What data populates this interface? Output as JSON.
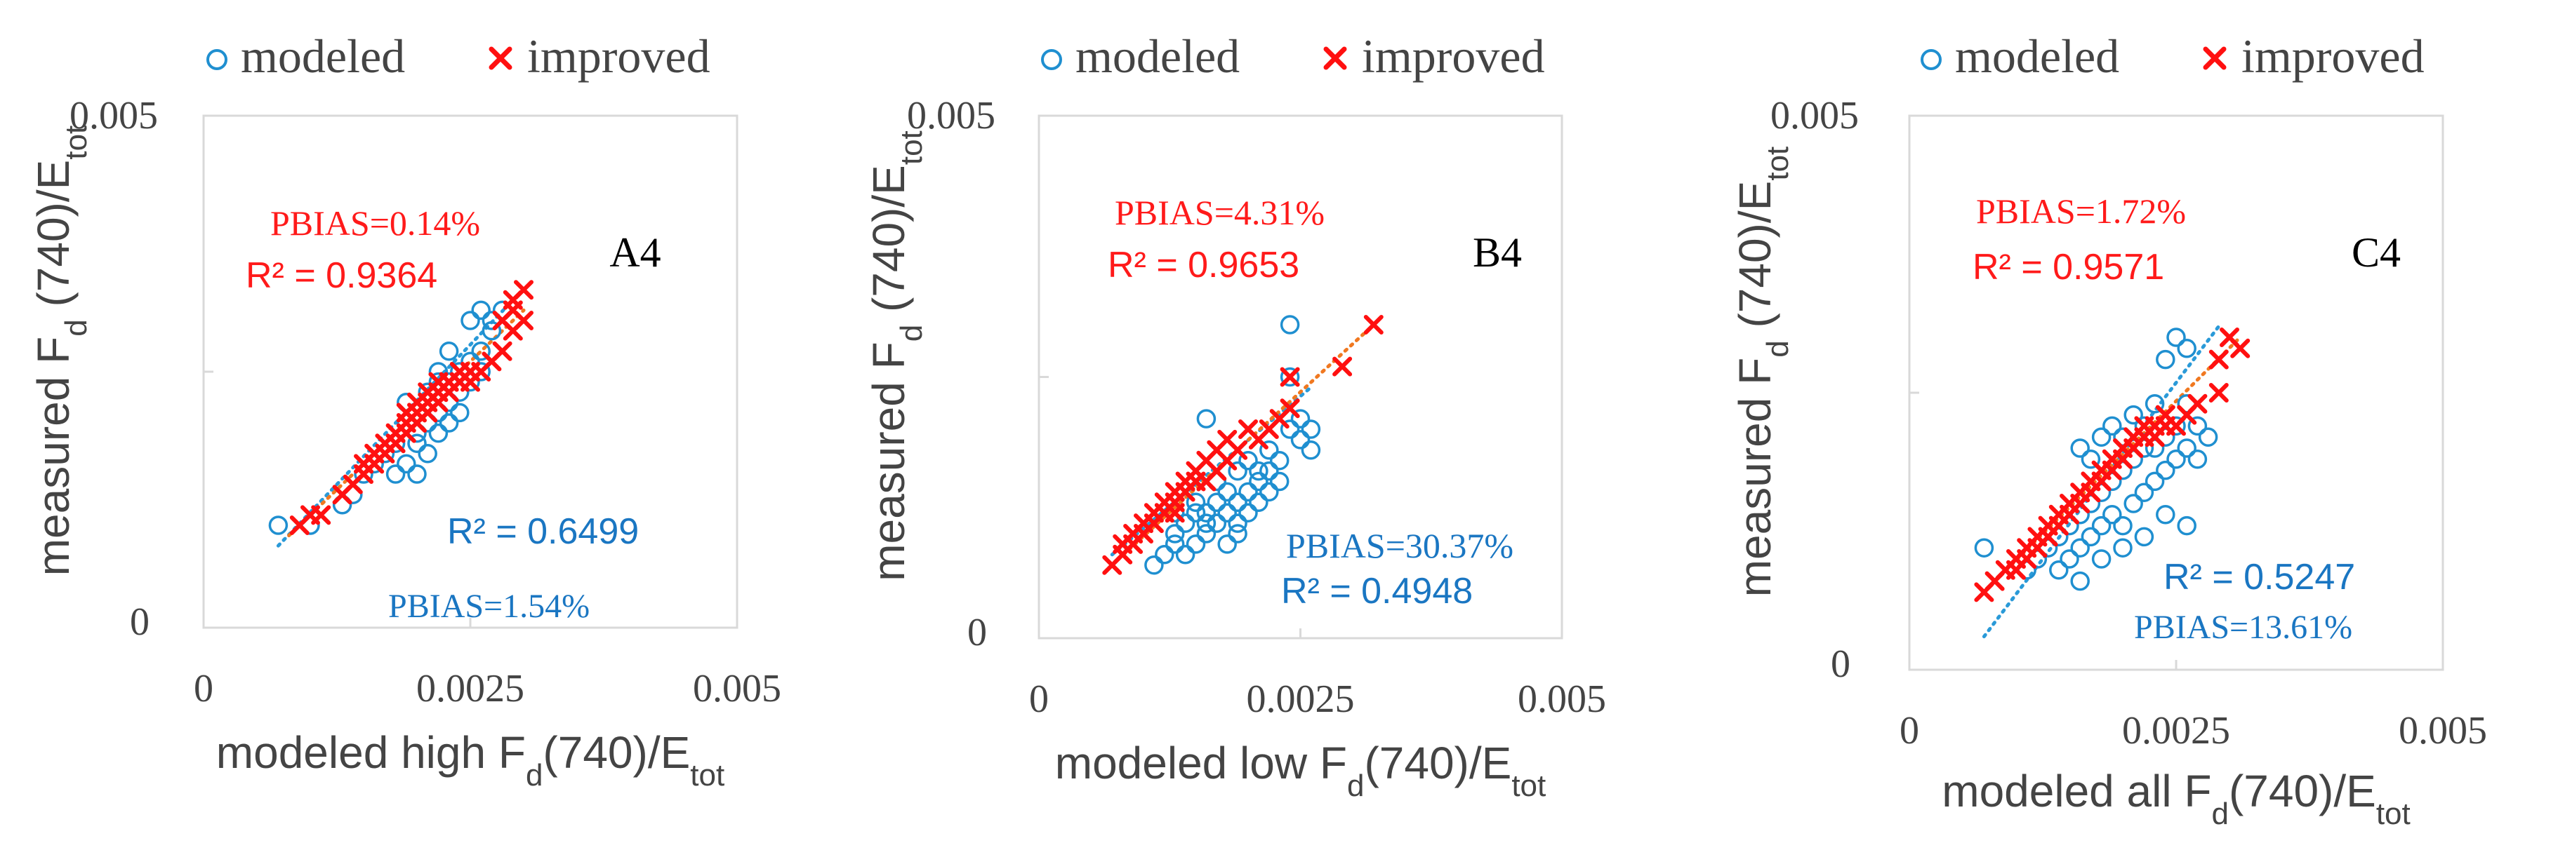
{
  "colors": {
    "modeled": "#1f8fd0",
    "improved": "#ff1010",
    "fit_modeled": "#2a9ad8",
    "fit_improved": "#f07820",
    "text_dark": "#444444",
    "stat_blue": "#1a76c2",
    "stat_red": "#ff1a1a",
    "frame": "#d9d9d9"
  },
  "legend": {
    "modeled": "modeled",
    "improved": "improved"
  },
  "chart_data": [
    {
      "type": "scatter",
      "panel_label": "A4",
      "xlabel": {
        "pre": "modeled high F",
        "sub": "d",
        "mid": "(740)/E",
        "sub2": "tot"
      },
      "ylabel": {
        "pre": "measured F",
        "sub": "d",
        "mid": " (740)/E",
        "sub2": "tot"
      },
      "xlim": [
        0,
        0.005
      ],
      "ylim": [
        0,
        0.005
      ],
      "xticks": [
        "0",
        "0.0025",
        "0.005"
      ],
      "yticks": [
        "0",
        "0.005"
      ],
      "stats": {
        "improved_pbias": "PBIAS=0.14%",
        "improved_r2": "R² = 0.9364",
        "modeled_r2": "R² = 0.6499",
        "modeled_pbias": "PBIAS=1.54%"
      },
      "series": [
        {
          "name": "modeled",
          "marker": "circle",
          "x": [
            0.0007,
            0.001,
            0.0013,
            0.0014,
            0.0015,
            0.0016,
            0.0017,
            0.0018,
            0.0018,
            0.0019,
            0.0019,
            0.002,
            0.002,
            0.002,
            0.0021,
            0.0021,
            0.0021,
            0.0022,
            0.0022,
            0.0022,
            0.0022,
            0.0023,
            0.0023,
            0.0023,
            0.0023,
            0.0024,
            0.0024,
            0.0024,
            0.0025,
            0.0025,
            0.0025,
            0.0026,
            0.0026,
            0.0026,
            0.0027,
            0.0027,
            0.0028,
            0.0019,
            0.002,
            0.0021
          ],
          "y": [
            0.001,
            0.001,
            0.0012,
            0.0013,
            0.0015,
            0.0016,
            0.0017,
            0.0015,
            0.0018,
            0.0016,
            0.0022,
            0.0015,
            0.0018,
            0.0021,
            0.0017,
            0.002,
            0.0022,
            0.0019,
            0.0021,
            0.0024,
            0.0025,
            0.002,
            0.0022,
            0.0024,
            0.0027,
            0.0021,
            0.0023,
            0.0025,
            0.0024,
            0.0026,
            0.003,
            0.0025,
            0.0027,
            0.0031,
            0.0029,
            0.003,
            0.0031,
            0.002,
            0.0019,
            0.0023
          ]
        },
        {
          "name": "improved",
          "marker": "x",
          "x": [
            0.0009,
            0.001,
            0.0011,
            0.0013,
            0.0014,
            0.0015,
            0.0015,
            0.0016,
            0.0016,
            0.0017,
            0.0017,
            0.0018,
            0.0018,
            0.0019,
            0.0019,
            0.0019,
            0.002,
            0.002,
            0.002,
            0.0021,
            0.0021,
            0.0021,
            0.0022,
            0.0022,
            0.0022,
            0.0023,
            0.0023,
            0.0023,
            0.0024,
            0.0024,
            0.0025,
            0.0025,
            0.0026,
            0.0027,
            0.0028,
            0.0028,
            0.0029,
            0.0029,
            0.0029,
            0.003,
            0.003
          ],
          "y": [
            0.001,
            0.0011,
            0.0011,
            0.0013,
            0.0014,
            0.0015,
            0.0016,
            0.0016,
            0.0017,
            0.0017,
            0.0018,
            0.0018,
            0.0019,
            0.0019,
            0.002,
            0.0021,
            0.002,
            0.0021,
            0.0022,
            0.0021,
            0.0022,
            0.0023,
            0.0022,
            0.0023,
            0.0024,
            0.0023,
            0.0024,
            0.0024,
            0.0024,
            0.0025,
            0.0024,
            0.0025,
            0.0025,
            0.0026,
            0.0027,
            0.003,
            0.0029,
            0.0031,
            0.0032,
            0.003,
            0.0033
          ]
        }
      ],
      "fit_lines": {
        "modeled": [
          0.0007,
          0.0008,
          0.0029,
          0.0032
        ],
        "improved": [
          0.0008,
          0.0009,
          0.003,
          0.0031
        ]
      }
    },
    {
      "type": "scatter",
      "panel_label": "B4",
      "xlabel": {
        "pre": "modeled low F",
        "sub": "d",
        "mid": "(740)/E",
        "sub2": "tot"
      },
      "ylabel": {
        "pre": "measured F",
        "sub": "d",
        "mid": " (740)/E",
        "sub2": "tot"
      },
      "xlim": [
        0,
        0.005
      ],
      "ylim": [
        0,
        0.005
      ],
      "xticks": [
        "0",
        "0.0025",
        "0.005"
      ],
      "yticks": [
        "0",
        "0.005"
      ],
      "stats": {
        "improved_pbias": "PBIAS=4.31%",
        "improved_r2": "R² = 0.9653",
        "modeled_pbias": "PBIAS=30.37%",
        "modeled_r2": "R² = 0.4948"
      },
      "series": [
        {
          "name": "modeled",
          "marker": "circle",
          "x": [
            0.0011,
            0.0012,
            0.0013,
            0.0013,
            0.0014,
            0.0014,
            0.0015,
            0.0015,
            0.0015,
            0.0016,
            0.0016,
            0.0016,
            0.0017,
            0.0017,
            0.0017,
            0.0018,
            0.0018,
            0.0018,
            0.0019,
            0.0019,
            0.0019,
            0.002,
            0.002,
            0.002,
            0.0021,
            0.0021,
            0.0022,
            0.0022,
            0.0022,
            0.0023,
            0.0023,
            0.0024,
            0.0024,
            0.0024,
            0.0025,
            0.0025,
            0.0026,
            0.0026,
            0.0016,
            0.0013,
            0.0019,
            0.0021
          ],
          "y": [
            0.0007,
            0.0008,
            0.0009,
            0.001,
            0.0008,
            0.0011,
            0.0009,
            0.0012,
            0.0013,
            0.001,
            0.0012,
            0.0021,
            0.0011,
            0.0013,
            0.0015,
            0.0009,
            0.0012,
            0.0014,
            0.0011,
            0.0013,
            0.0016,
            0.0012,
            0.0014,
            0.0017,
            0.0013,
            0.0015,
            0.0014,
            0.0016,
            0.0018,
            0.0015,
            0.0017,
            0.002,
            0.0025,
            0.003,
            0.0019,
            0.0021,
            0.0018,
            0.002,
            0.0011,
            0.0012,
            0.001,
            0.0016
          ]
        },
        {
          "name": "improved",
          "marker": "x",
          "x": [
            0.0007,
            0.0008,
            0.0008,
            0.0009,
            0.0009,
            0.001,
            0.001,
            0.0011,
            0.0011,
            0.0012,
            0.0012,
            0.0013,
            0.0013,
            0.0013,
            0.0014,
            0.0014,
            0.0015,
            0.0015,
            0.0016,
            0.0016,
            0.0017,
            0.0017,
            0.0018,
            0.0018,
            0.0019,
            0.002,
            0.0021,
            0.0022,
            0.0023,
            0.0024,
            0.0024,
            0.0029,
            0.0032
          ],
          "y": [
            0.0007,
            0.0008,
            0.0009,
            0.0009,
            0.001,
            0.001,
            0.0011,
            0.0011,
            0.0012,
            0.0012,
            0.0013,
            0.0012,
            0.0013,
            0.0014,
            0.0014,
            0.0015,
            0.0015,
            0.0016,
            0.0015,
            0.0017,
            0.0016,
            0.0018,
            0.0017,
            0.0019,
            0.0018,
            0.002,
            0.0019,
            0.002,
            0.0021,
            0.0022,
            0.0025,
            0.0026,
            0.003
          ]
        }
      ],
      "fit_lines": {
        "modeled": [
          0.0007,
          0.0008,
          0.0026,
          0.0024
        ],
        "improved": [
          0.0007,
          0.0007,
          0.0032,
          0.003
        ]
      }
    },
    {
      "type": "scatter",
      "panel_label": "C4",
      "xlabel": {
        "pre": "modeled all F",
        "sub": "d",
        "mid": "(740)/E",
        "sub2": "tot"
      },
      "ylabel": {
        "pre": "measured F",
        "sub": "d",
        "mid": " (740)/E",
        "sub2": "tot"
      },
      "xlim": [
        0,
        0.005
      ],
      "ylim": [
        0,
        0.005
      ],
      "xticks": [
        "0",
        "0.0025",
        "0.005"
      ],
      "yticks": [
        "0",
        "0.005"
      ],
      "stats": {
        "improved_pbias": "PBIAS=1.72%",
        "improved_r2": "R² = 0.9571",
        "modeled_r2": "R² = 0.5247",
        "modeled_pbias": "PBIAS=13.61%"
      },
      "series": [
        {
          "name": "modeled",
          "marker": "circle",
          "x": [
            0.0007,
            0.0011,
            0.0012,
            0.0013,
            0.0014,
            0.0014,
            0.0015,
            0.0015,
            0.0016,
            0.0016,
            0.0016,
            0.0017,
            0.0017,
            0.0017,
            0.0018,
            0.0018,
            0.0018,
            0.0019,
            0.0019,
            0.0019,
            0.002,
            0.002,
            0.002,
            0.0021,
            0.0021,
            0.0021,
            0.0022,
            0.0022,
            0.0022,
            0.0023,
            0.0023,
            0.0023,
            0.0024,
            0.0024,
            0.0024,
            0.0025,
            0.0025,
            0.0025,
            0.0026,
            0.0026,
            0.0026,
            0.0027,
            0.0027,
            0.0028,
            0.0018,
            0.002,
            0.0022,
            0.0016,
            0.0024,
            0.0026
          ],
          "y": [
            0.0011,
            0.0009,
            0.001,
            0.0011,
            0.0009,
            0.0012,
            0.001,
            0.0013,
            0.0011,
            0.0014,
            0.002,
            0.0012,
            0.0015,
            0.0019,
            0.0013,
            0.0016,
            0.0021,
            0.0014,
            0.0017,
            0.0022,
            0.0013,
            0.0018,
            0.0021,
            0.0015,
            0.0019,
            0.0023,
            0.0016,
            0.002,
            0.0022,
            0.0017,
            0.002,
            0.0024,
            0.0018,
            0.0021,
            0.0028,
            0.0019,
            0.0022,
            0.003,
            0.002,
            0.0024,
            0.0029,
            0.0019,
            0.0022,
            0.0021,
            0.001,
            0.0011,
            0.0012,
            0.0008,
            0.0014,
            0.0013
          ]
        },
        {
          "name": "improved",
          "marker": "x",
          "x": [
            0.0007,
            0.0008,
            0.0009,
            0.001,
            0.001,
            0.0011,
            0.0011,
            0.0012,
            0.0012,
            0.0013,
            0.0013,
            0.0014,
            0.0014,
            0.0015,
            0.0015,
            0.0016,
            0.0016,
            0.0017,
            0.0017,
            0.0018,
            0.0018,
            0.0019,
            0.0019,
            0.002,
            0.002,
            0.0021,
            0.0021,
            0.0022,
            0.0022,
            0.0023,
            0.0023,
            0.0024,
            0.0024,
            0.0025,
            0.0026,
            0.0027,
            0.0029,
            0.0029,
            0.003,
            0.0031
          ],
          "y": [
            0.0007,
            0.0008,
            0.0009,
            0.0009,
            0.001,
            0.001,
            0.0011,
            0.0011,
            0.0012,
            0.0012,
            0.0013,
            0.0013,
            0.0014,
            0.0014,
            0.0015,
            0.0015,
            0.0016,
            0.0016,
            0.0017,
            0.0017,
            0.0018,
            0.0018,
            0.0019,
            0.0019,
            0.002,
            0.002,
            0.0021,
            0.0021,
            0.0022,
            0.0021,
            0.0022,
            0.0022,
            0.0023,
            0.0022,
            0.0023,
            0.0024,
            0.0025,
            0.0028,
            0.003,
            0.0029
          ]
        }
      ],
      "fit_lines": {
        "modeled": [
          0.0007,
          0.0003,
          0.0029,
          0.0031
        ],
        "improved": [
          0.0007,
          0.0007,
          0.0031,
          0.003
        ]
      }
    }
  ]
}
